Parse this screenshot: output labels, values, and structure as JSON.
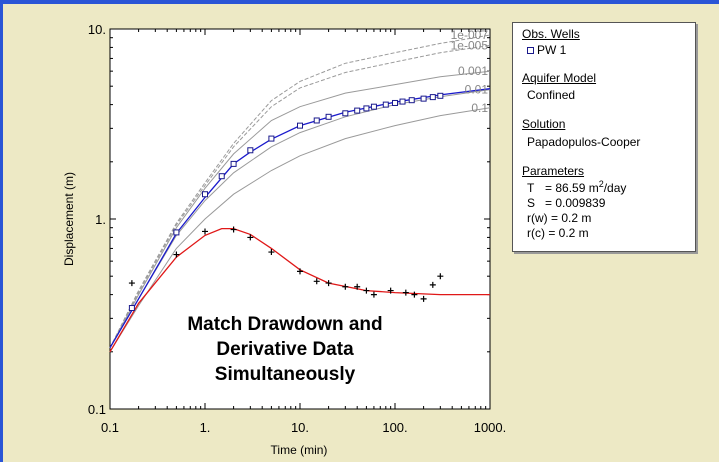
{
  "chart_data": {
    "type": "line",
    "title": "",
    "xlabel": "Time (min)",
    "ylabel": "Displacement (m)",
    "xscale": "log",
    "yscale": "log",
    "xlim": [
      0.1,
      1000
    ],
    "ylim": [
      0.1,
      10
    ],
    "x_tick_labels": [
      "0.1",
      "1.",
      "10.",
      "100.",
      "1000."
    ],
    "y_tick_labels": [
      "0.1",
      "1.",
      "10."
    ],
    "grid": false,
    "type_curves": [
      {
        "label": "1e-007",
        "points": [
          [
            0.1,
            0.21
          ],
          [
            0.2,
            0.42
          ],
          [
            0.5,
            0.95
          ],
          [
            1,
            1.55
          ],
          [
            2,
            2.5
          ],
          [
            5,
            4.2
          ],
          [
            10,
            5.3
          ],
          [
            30,
            6.6
          ],
          [
            100,
            7.5
          ],
          [
            300,
            8.4
          ],
          [
            1000,
            9.3
          ]
        ]
      },
      {
        "label": "1e-005",
        "points": [
          [
            0.1,
            0.21
          ],
          [
            0.2,
            0.41
          ],
          [
            0.5,
            0.93
          ],
          [
            1,
            1.5
          ],
          [
            2,
            2.4
          ],
          [
            5,
            3.9
          ],
          [
            10,
            4.9
          ],
          [
            30,
            5.9
          ],
          [
            100,
            6.7
          ],
          [
            300,
            7.5
          ],
          [
            1000,
            8.2
          ]
        ]
      },
      {
        "label": "0.001",
        "points": [
          [
            0.1,
            0.21
          ],
          [
            0.2,
            0.4
          ],
          [
            0.5,
            0.9
          ],
          [
            1,
            1.45
          ],
          [
            2,
            2.2
          ],
          [
            5,
            3.3
          ],
          [
            10,
            3.9
          ],
          [
            30,
            4.6
          ],
          [
            100,
            5.1
          ],
          [
            300,
            5.6
          ],
          [
            1000,
            6.0
          ]
        ]
      },
      {
        "label": "0.01",
        "points": [
          [
            0.1,
            0.21
          ],
          [
            0.2,
            0.38
          ],
          [
            0.5,
            0.82
          ],
          [
            1,
            1.25
          ],
          [
            2,
            1.75
          ],
          [
            5,
            2.4
          ],
          [
            10,
            2.85
          ],
          [
            30,
            3.45
          ],
          [
            100,
            4.0
          ],
          [
            300,
            4.4
          ],
          [
            1000,
            4.8
          ]
        ]
      },
      {
        "label": "0.1",
        "points": [
          [
            0.1,
            0.2
          ],
          [
            0.2,
            0.35
          ],
          [
            0.5,
            0.7
          ],
          [
            1,
            1.0
          ],
          [
            2,
            1.35
          ],
          [
            5,
            1.8
          ],
          [
            10,
            2.15
          ],
          [
            30,
            2.65
          ],
          [
            100,
            3.1
          ],
          [
            300,
            3.5
          ],
          [
            1000,
            3.85
          ]
        ]
      }
    ],
    "series": [
      {
        "name": "PW 1",
        "role": "drawdown-observations",
        "marker": "square",
        "color": "#1a1a8c",
        "points": [
          [
            0.17,
            0.34
          ],
          [
            0.5,
            0.85
          ],
          [
            1,
            1.35
          ],
          [
            1.5,
            1.68
          ],
          [
            2,
            1.95
          ],
          [
            3,
            2.3
          ],
          [
            5,
            2.65
          ],
          [
            10,
            3.1
          ],
          [
            15,
            3.3
          ],
          [
            20,
            3.45
          ],
          [
            30,
            3.6
          ],
          [
            40,
            3.72
          ],
          [
            50,
            3.82
          ],
          [
            60,
            3.9
          ],
          [
            80,
            4.0
          ],
          [
            100,
            4.08
          ],
          [
            120,
            4.15
          ],
          [
            150,
            4.22
          ],
          [
            200,
            4.3
          ],
          [
            250,
            4.38
          ],
          [
            300,
            4.45
          ]
        ]
      },
      {
        "role": "drawdown-fit",
        "color": "#1a1acc",
        "points": [
          [
            0.1,
            0.21
          ],
          [
            0.2,
            0.38
          ],
          [
            0.5,
            0.84
          ],
          [
            1,
            1.3
          ],
          [
            2,
            1.95
          ],
          [
            3,
            2.25
          ],
          [
            5,
            2.63
          ],
          [
            10,
            3.1
          ],
          [
            30,
            3.65
          ],
          [
            100,
            4.12
          ],
          [
            300,
            4.5
          ],
          [
            1000,
            4.85
          ]
        ]
      },
      {
        "role": "derivative-observations",
        "marker": "plus",
        "color": "#000000",
        "points": [
          [
            0.17,
            0.46
          ],
          [
            0.5,
            0.65
          ],
          [
            1,
            0.86
          ],
          [
            2,
            0.88
          ],
          [
            3,
            0.8
          ],
          [
            5,
            0.67
          ],
          [
            10,
            0.53
          ],
          [
            15,
            0.47
          ],
          [
            20,
            0.46
          ],
          [
            30,
            0.44
          ],
          [
            40,
            0.44
          ],
          [
            50,
            0.42
          ],
          [
            60,
            0.4
          ],
          [
            90,
            0.42
          ],
          [
            130,
            0.41
          ],
          [
            160,
            0.4
          ],
          [
            200,
            0.38
          ],
          [
            250,
            0.45
          ],
          [
            300,
            0.5
          ]
        ]
      },
      {
        "role": "derivative-fit",
        "color": "#e01818",
        "points": [
          [
            0.1,
            0.2
          ],
          [
            0.2,
            0.36
          ],
          [
            0.5,
            0.63
          ],
          [
            1,
            0.82
          ],
          [
            1.5,
            0.89
          ],
          [
            2,
            0.89
          ],
          [
            3,
            0.83
          ],
          [
            5,
            0.7
          ],
          [
            10,
            0.54
          ],
          [
            20,
            0.46
          ],
          [
            50,
            0.42
          ],
          [
            100,
            0.41
          ],
          [
            300,
            0.4
          ],
          [
            1000,
            0.4
          ]
        ]
      }
    ]
  },
  "annotation": {
    "line1": "Match Drawdown and",
    "line2": "Derivative Data",
    "line3": "Simultaneously"
  },
  "legend": {
    "obs_header": "Obs. Wells",
    "obs_item": "PW 1",
    "aquifer_header": "Aquifer Model",
    "aquifer_value": "Confined",
    "solution_header": "Solution",
    "solution_value": "Papadopulos-Cooper",
    "params_header": "Parameters",
    "T_label": "T",
    "T_value": "= 86.59 m",
    "T_sup": "2",
    "T_unit": "/day",
    "S_label": "S",
    "S_value": "= 0.009839",
    "rw": "r(w) = 0.2 m",
    "rc": "r(c) = 0.2 m"
  },
  "colors": {
    "background": "#ede9c5",
    "plot_bg": "#ffffff",
    "type_curve": "#9a9a9a",
    "fit_drawdown": "#1a1acc",
    "fit_derivative": "#e01818",
    "frame_accent": "#2a55d6"
  }
}
